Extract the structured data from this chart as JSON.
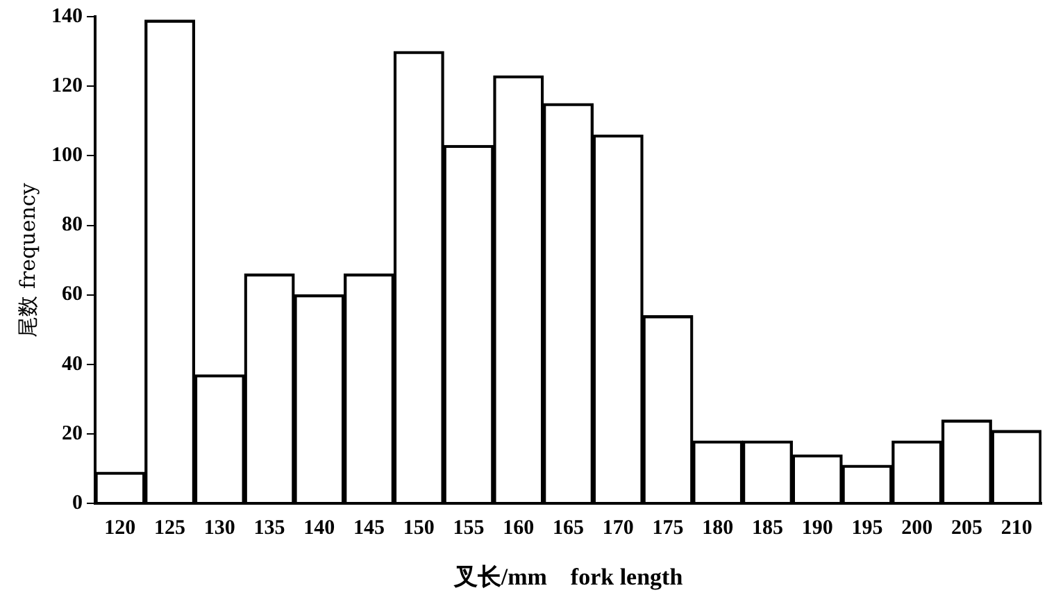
{
  "chart_data": {
    "type": "bar",
    "xlabel": "叉长/mm    fork length",
    "ylabel": "尾数 frequency",
    "categories": [
      "120",
      "125",
      "130",
      "135",
      "140",
      "145",
      "150",
      "155",
      "160",
      "165",
      "170",
      "175",
      "180",
      "185",
      "190",
      "195",
      "200",
      "205",
      "210"
    ],
    "values": [
      9,
      139,
      37,
      66,
      60,
      66,
      130,
      103,
      123,
      115,
      106,
      54,
      18,
      18,
      14,
      11,
      18,
      24,
      21
    ],
    "color": "#000000",
    "ylim": [
      0,
      140
    ],
    "yticks": [
      0,
      20,
      40,
      60,
      80,
      100,
      120,
      140
    ],
    "grid": false,
    "legend": false
  }
}
